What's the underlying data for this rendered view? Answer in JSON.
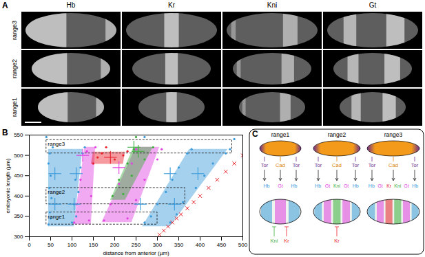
{
  "panel_a": {
    "label": "A",
    "columns": [
      "Hb",
      "Kr",
      "Kni",
      "Gt"
    ],
    "rows": [
      "range3",
      "range2",
      "range1"
    ]
  },
  "chart_data": {
    "type": "scatter",
    "label": "B",
    "xlabel": "distance from anterior (µm)",
    "ylabel": "embryonic length (µm)",
    "xlim": [
      0,
      500
    ],
    "xticks": [
      0,
      50,
      100,
      150,
      200,
      250,
      300,
      350,
      400,
      450,
      500
    ],
    "ylim": [
      300,
      550
    ],
    "yticks": [
      300,
      350,
      400,
      450,
      500,
      550
    ],
    "grid": false,
    "series": [
      {
        "name": "Hb",
        "color": "#3a9ad9",
        "marker": "circle",
        "points": [
          [
            45,
            330
          ],
          [
            50,
            345
          ],
          [
            48,
            360
          ],
          [
            52,
            395
          ],
          [
            47,
            420
          ],
          [
            50,
            450
          ],
          [
            45,
            480
          ],
          [
            48,
            505
          ],
          [
            55,
            520
          ],
          [
            100,
            335
          ],
          [
            110,
            350
          ],
          [
            105,
            380
          ],
          [
            115,
            410
          ],
          [
            108,
            440
          ],
          [
            120,
            470
          ],
          [
            125,
            505
          ],
          [
            130,
            520
          ],
          [
            270,
            335
          ],
          [
            285,
            350
          ],
          [
            300,
            380
          ],
          [
            320,
            410
          ],
          [
            335,
            440
          ],
          [
            350,
            470
          ],
          [
            370,
            505
          ],
          [
            380,
            515
          ],
          [
            330,
            335
          ],
          [
            345,
            355
          ],
          [
            360,
            385
          ],
          [
            390,
            420
          ],
          [
            410,
            450
          ],
          [
            430,
            480
          ],
          [
            460,
            505
          ],
          [
            470,
            515
          ],
          [
            40,
            545
          ],
          [
            270,
            545
          ],
          [
            480,
            540
          ]
        ],
        "bands": [
          {
            "y": [
              325,
              515
            ],
            "x1": [
              45,
              45
            ],
            "x2": [
              105,
              125
            ]
          },
          {
            "y": [
              325,
              515
            ],
            "x1": [
              265,
              375
            ],
            "x2": [
              330,
              465
            ]
          }
        ],
        "means": {
          "marker": "plus",
          "values": [
            [
              60,
              455
            ],
            [
              110,
              455
            ],
            [
              330,
              455
            ],
            [
              395,
              455
            ],
            [
              60,
              380
            ],
            [
              105,
              380
            ],
            [
              260,
              380
            ],
            [
              340,
              380
            ]
          ]
        }
      },
      {
        "name": "Gt",
        "color": "#e040e0",
        "marker": "circle",
        "points": [
          [
            105,
            335
          ],
          [
            140,
            340
          ],
          [
            110,
            380
          ],
          [
            145,
            400
          ],
          [
            120,
            440
          ],
          [
            150,
            480
          ],
          [
            135,
            510
          ],
          [
            155,
            520
          ],
          [
            175,
            340
          ],
          [
            230,
            345
          ],
          [
            190,
            380
          ],
          [
            250,
            390
          ],
          [
            210,
            430
          ],
          [
            270,
            440
          ],
          [
            240,
            480
          ],
          [
            300,
            490
          ],
          [
            250,
            515
          ],
          [
            310,
            515
          ]
        ],
        "bands": [
          {
            "y": [
              330,
              520
            ],
            "x1": [
              105,
              130
            ],
            "x2": [
              145,
              155
            ]
          },
          {
            "y": [
              335,
              520
            ],
            "x1": [
              170,
              250
            ],
            "x2": [
              240,
              305
            ]
          }
        ],
        "means": {
          "marker": "plus",
          "values": [
            [
              125,
              500
            ],
            [
              210,
              470
            ]
          ]
        }
      },
      {
        "name": "Kr",
        "color": "#e8202a",
        "marker": "circle",
        "points": [
          [
            150,
            480
          ],
          [
            160,
            495
          ],
          [
            200,
            490
          ],
          [
            220,
            500
          ],
          [
            170,
            505
          ],
          [
            230,
            510
          ],
          [
            180,
            520
          ]
        ],
        "bands": [
          {
            "y": [
              478,
              508
            ],
            "x1": [
              145,
              150
            ],
            "x2": [
              220,
              225
            ]
          }
        ],
        "means": {
          "marker": "plus",
          "values": [
            [
              190,
              495
            ]
          ]
        }
      },
      {
        "name": "Kni",
        "color": "#3cae3c",
        "marker": "circle",
        "points": [
          [
            195,
            400
          ],
          [
            220,
            405
          ],
          [
            210,
            440
          ],
          [
            240,
            450
          ],
          [
            230,
            480
          ],
          [
            270,
            490
          ],
          [
            245,
            515
          ],
          [
            290,
            520
          ],
          [
            250,
            545
          ]
        ],
        "bands": [
          {
            "y": [
              390,
              520
            ],
            "x1": [
              190,
              245
            ],
            "x2": [
              225,
              290
            ]
          }
        ],
        "means": {
          "marker": "plus",
          "values": [
            [
              245,
              520
            ],
            [
              255,
              510
            ]
          ]
        }
      }
    ],
    "embryo_length": {
      "color": "#e8202a",
      "marker": "times",
      "values": [
        305,
        315,
        325,
        335,
        345,
        355,
        370,
        385,
        400,
        420,
        440,
        460,
        480,
        500
      ]
    },
    "boxes": [
      {
        "label": "range3",
        "x": [
          40,
          475
        ],
        "y": [
          505,
          538
        ]
      },
      {
        "label": "range2",
        "x": [
          40,
          365
        ],
        "y": [
          380,
          420
        ]
      },
      {
        "label": "range1",
        "x": [
          40,
          300
        ],
        "y": [
          330,
          360
        ]
      }
    ]
  },
  "panel_c": {
    "label": "C",
    "columns": [
      {
        "title": "range1",
        "top": [
          "Tor",
          "Cad",
          "Tor"
        ],
        "genes": [
          "Hb",
          "Gt",
          "Hb"
        ],
        "bottom": [
          "Kni",
          "Kr"
        ]
      },
      {
        "title": "range2",
        "top": [
          "Tor",
          "Cad",
          "Tor"
        ],
        "genes": [
          "Hb",
          "Gt",
          "Kni",
          "Gt",
          "Hb"
        ],
        "bottom": [
          "Kr"
        ]
      },
      {
        "title": "range3",
        "top": [
          "Tor",
          "Cad",
          "Tor"
        ],
        "genes": [
          "Hb",
          "Gt",
          "Kr",
          "Kni",
          "Gt",
          "Hb"
        ],
        "bottom": []
      }
    ]
  }
}
